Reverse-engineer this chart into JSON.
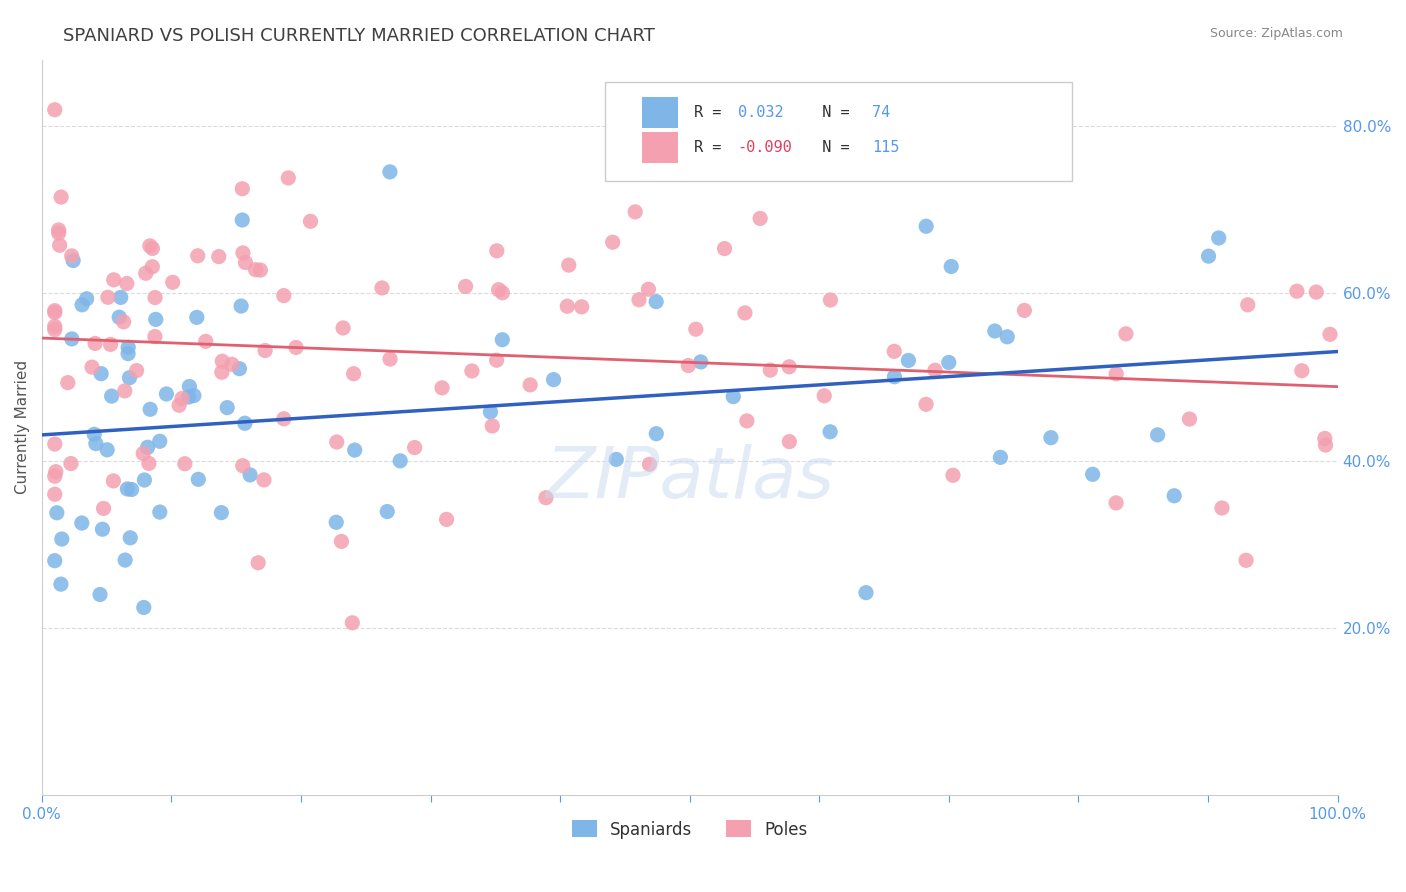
{
  "title": "SPANIARD VS POLISH CURRENTLY MARRIED CORRELATION CHART",
  "source": "Source: ZipAtlas.com",
  "ylabel": "Currently Married",
  "r_spaniard": 0.032,
  "r_pole": -0.09,
  "n_spaniard": 74,
  "n_pole": 115,
  "color_spaniard": "#7EB6E8",
  "color_pole": "#F4A0B0",
  "line_color_spaniard": "#3060C0",
  "line_color_pole": "#E06070",
  "watermark": "ZIPatlas",
  "background_color": "#FFFFFF",
  "grid_color": "#CCCCCC",
  "title_color": "#404040",
  "axis_label_color": "#5599EE"
}
